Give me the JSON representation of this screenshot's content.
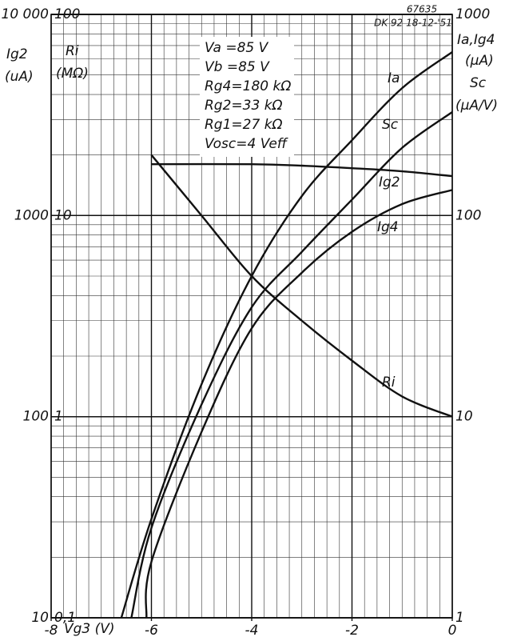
{
  "chart_data": {
    "type": "line",
    "code": "67635",
    "subtitle": "DK 92 18-12-'51",
    "xlabel": "Vg3 (V)",
    "ylabel": [
      "Ig2",
      "(uA)"
    ],
    "y3label": [
      "Ri",
      "(MΩ)"
    ],
    "y2label": [
      "Ia,Ig4",
      "(µA)",
      "Sc",
      "(µA/V)"
    ],
    "conditions": [
      "Va =85 V",
      "Vb =85 V",
      "Rg4=180 kΩ",
      "Rg2=33 kΩ",
      "Rg1=27 kΩ",
      "Vosc=4 Veff"
    ],
    "xlim": [
      -8,
      0
    ],
    "xticks": [
      -8,
      -6,
      -4,
      -2,
      0
    ],
    "xminor_ticks": [
      -8,
      -7.75,
      -7.5,
      -7.25,
      -7,
      -6.75,
      -6.5,
      -6.25,
      -6,
      -5.75,
      -5.5,
      -5.25,
      -5,
      -4.75,
      -4.5,
      -4.25,
      -4,
      -3.75,
      -3.5,
      -3.25,
      -3,
      -2.75,
      -2.5,
      -2.25,
      -2,
      -1.75,
      -1.5,
      -1.25,
      -1,
      -0.75,
      -0.5,
      -0.25,
      0
    ],
    "log_scale": true,
    "grid": true,
    "ylim": [
      10,
      10000
    ],
    "yticks": [
      10,
      100,
      1000,
      {
        "value": 10000,
        "label": "10 000"
      }
    ],
    "y3lim": [
      0.1,
      100
    ],
    "y3ticks": [
      {
        "value": 0.1,
        "label": "0,1"
      },
      1,
      10,
      100
    ],
    "y2lim": [
      1,
      1000
    ],
    "y2ticks": [
      1,
      10,
      100,
      1000
    ],
    "y2minor_ticks": [
      2,
      3,
      4,
      5,
      6,
      7,
      8,
      9,
      20,
      30,
      40,
      50,
      60,
      70,
      80,
      90,
      200,
      300,
      400,
      500,
      600,
      700,
      800,
      900
    ],
    "series": [
      {
        "name": "Ia",
        "color": "#111",
        "axis": "y2",
        "x": [
          -6.6,
          -6,
          -5,
          -4,
          -3,
          -2,
          -1,
          0
        ],
        "values": [
          1,
          3.1,
          14.5,
          50,
          125,
          237,
          430,
          650
        ]
      },
      {
        "name": "Sc",
        "color": "#111",
        "axis": "y2",
        "x": [
          -6.4,
          -6,
          -5,
          -4,
          -3,
          -2,
          -1,
          0
        ],
        "values": [
          1,
          2.8,
          11.5,
          35,
          66,
          120,
          217,
          327
        ]
      },
      {
        "name": "Ig2",
        "color": "#111",
        "axis": "y",
        "x": [
          -6,
          -4,
          -3,
          -2,
          -1,
          0
        ],
        "values": [
          1800,
          1800,
          1770,
          1720,
          1660,
          1570
        ]
      },
      {
        "name": "Ig4",
        "color": "#111",
        "axis": "y2",
        "x": [
          -6.1,
          -6,
          -5,
          -4,
          -3,
          -2,
          -1,
          0
        ],
        "values": [
          1,
          1.9,
          8.4,
          27.5,
          52,
          83,
          114,
          134
        ]
      },
      {
        "name": "Ri",
        "color": "#111",
        "axis": "y3",
        "x": [
          -6,
          -5,
          -4,
          -3,
          -2,
          -1,
          0
        ],
        "values": [
          20,
          10,
          5,
          3,
          1.9,
          1.26,
          1
        ]
      }
    ]
  }
}
